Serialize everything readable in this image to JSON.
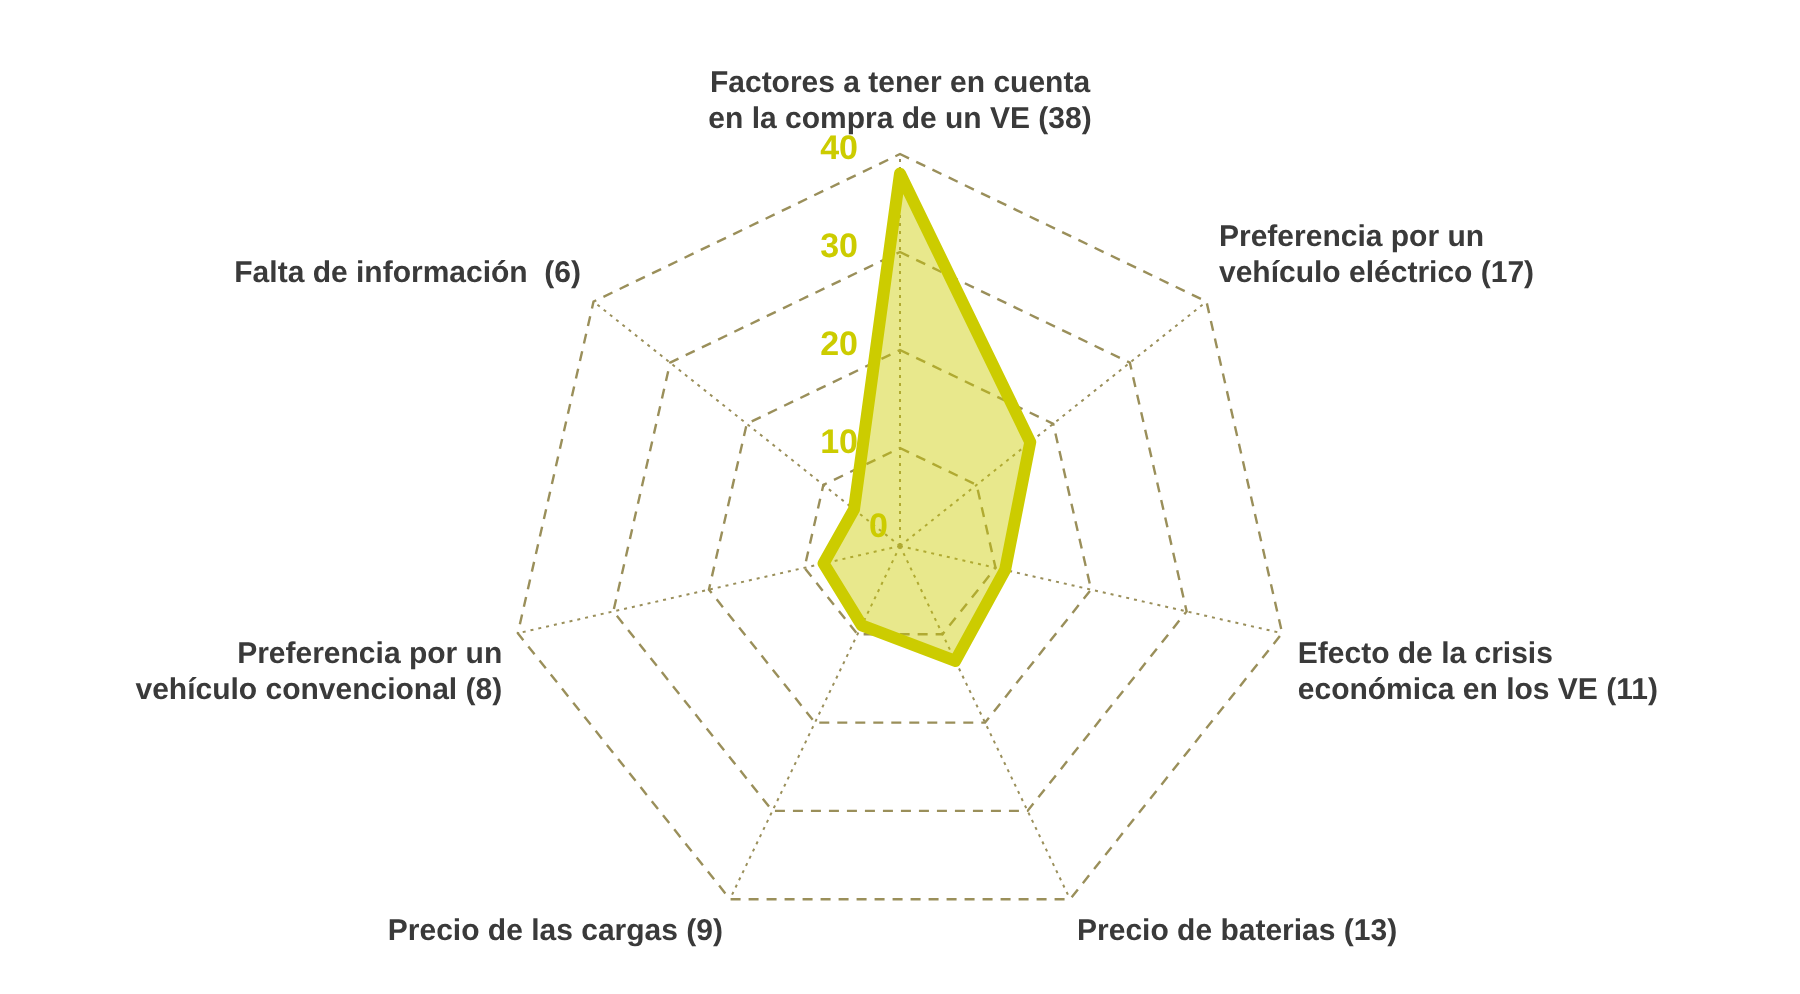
{
  "chart_data": {
    "type": "radar",
    "categories": [
      "Factores a tener en cuenta en la compra de un VE (38)",
      "Preferencia por un vehículo eléctrico (17)",
      "Efecto de la crisis económica en los VE (11)",
      "Precio de baterias (13)",
      "Precio de las cargas (9)",
      "Preferencia por un vehículo convencional (8)",
      "Falta de información  (6)"
    ],
    "series": [
      {
        "color": "#cccc00",
        "values": [
          38,
          17,
          11,
          13,
          9,
          8,
          6
        ]
      }
    ],
    "ylim": [
      0,
      40
    ],
    "yticks": [
      0,
      10,
      20,
      30,
      40
    ],
    "grid": true,
    "legend": false,
    "marker": "none",
    "line_style": "solid"
  }
}
